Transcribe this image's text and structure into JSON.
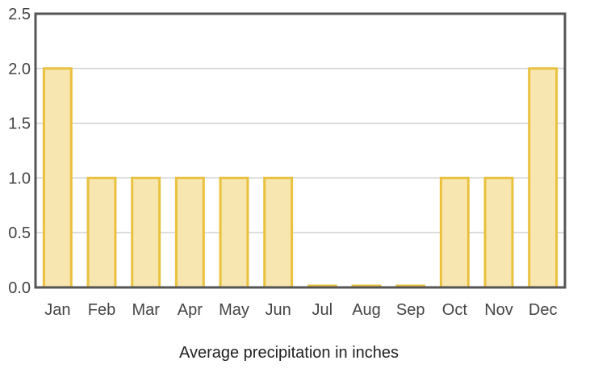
{
  "chart_data": {
    "type": "bar",
    "categories": [
      "Jan",
      "Feb",
      "Mar",
      "Apr",
      "May",
      "Jun",
      "Jul",
      "Aug",
      "Sep",
      "Oct",
      "Nov",
      "Dec"
    ],
    "values": [
      2.0,
      1.0,
      1.0,
      1.0,
      1.0,
      1.0,
      0.0,
      0.0,
      0.0,
      1.0,
      1.0,
      2.0
    ],
    "yticks": [
      "0.0",
      "0.5",
      "1.0",
      "1.5",
      "2.0",
      "2.5"
    ],
    "xlabel": "Average precipitation in inches",
    "ylabel": "",
    "title": "",
    "ylim": [
      0,
      2.5
    ],
    "grid": true,
    "colors": {
      "bar_fill": "#f8e6b0",
      "bar_stroke": "#e9c13e",
      "axis": "#555555",
      "grid": "#d0d0d0"
    }
  }
}
